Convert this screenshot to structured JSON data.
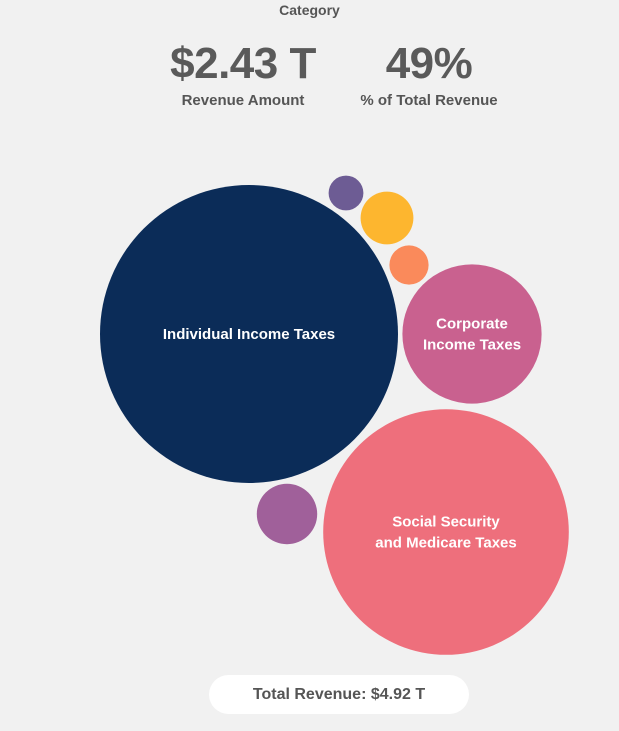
{
  "header": {
    "category_label": "Category",
    "revenue_amount": "$2.43 T",
    "revenue_amount_label": "Revenue Amount",
    "percent_total": "49%",
    "percent_total_label": "% of Total Revenue"
  },
  "footer": {
    "total_revenue": "Total Revenue: $4.92 T"
  },
  "chart_data": {
    "type": "bubble",
    "bubbles": [
      {
        "name": "Individual Income Taxes",
        "label_lines": [
          "Individual Income Taxes"
        ],
        "value": 2.43,
        "color": "#0b2c58"
      },
      {
        "name": "Social Security and Medicare Taxes",
        "label_lines": [
          "Social Security",
          "and Medicare Taxes"
        ],
        "value": 1.65,
        "color": "#ee6f7c"
      },
      {
        "name": "Corporate Income Taxes",
        "label_lines": [
          "Corporate",
          "Income Taxes"
        ],
        "value": 0.53,
        "color": "#c9618f"
      },
      {
        "name": "",
        "label_lines": [],
        "value": 0.1,
        "color": "#a0609a"
      },
      {
        "name": "",
        "label_lines": [],
        "value": 0.076,
        "color": "#fdb62f"
      },
      {
        "name": "",
        "label_lines": [],
        "value": 0.042,
        "color": "#fa8a5b"
      },
      {
        "name": "",
        "label_lines": [],
        "value": 0.033,
        "color": "#6d5c94"
      }
    ]
  }
}
